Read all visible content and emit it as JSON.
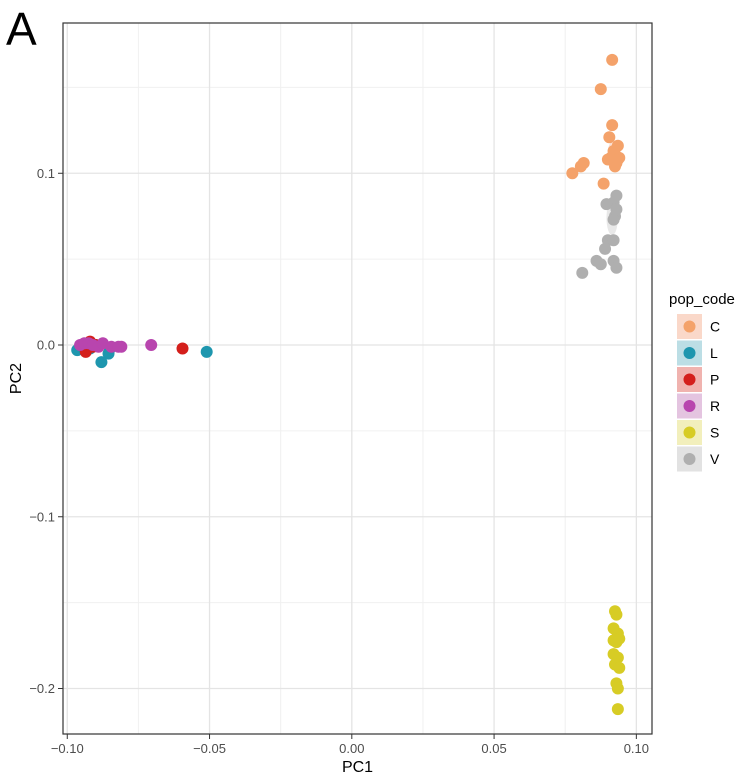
{
  "panel_label": "A",
  "chart_data": {
    "type": "scatter",
    "title": "",
    "xlabel": "PC1",
    "ylabel": "PC2",
    "xlim": [
      -0.1015,
      0.1055
    ],
    "ylim": [
      -0.2265,
      0.1875
    ],
    "x_ticks": [
      -0.1,
      -0.05,
      0.0,
      0.05,
      0.1
    ],
    "x_tick_labels": [
      "−0.10",
      "−0.05",
      "0.00",
      "0.05",
      "0.10"
    ],
    "y_ticks": [
      -0.2,
      -0.1,
      0.0,
      0.1
    ],
    "y_tick_labels": [
      "−0.2",
      "−0.1",
      "0.0",
      "0.1"
    ],
    "grid": true,
    "legend": {
      "title": "pop_code",
      "position": "right",
      "entries": [
        {
          "label": "C",
          "color": "#F4A26A",
          "fill": "#FAD8C9"
        },
        {
          "label": "L",
          "color": "#1E96AE",
          "fill": "#BCDEE5"
        },
        {
          "label": "P",
          "color": "#D41F1B",
          "fill": "#F0B3AF"
        },
        {
          "label": "R",
          "color": "#B845AE",
          "fill": "#E4C4E0"
        },
        {
          "label": "S",
          "color": "#D7CC25",
          "fill": "#F2EFBC"
        },
        {
          "label": "V",
          "color": "#AFAFAF",
          "fill": "#E2E2E2"
        }
      ]
    },
    "series": [
      {
        "name": "C",
        "color": "#F4A26A",
        "points": [
          [
            0.0915,
            0.166
          ],
          [
            0.0875,
            0.149
          ],
          [
            0.0915,
            0.128
          ],
          [
            0.0905,
            0.121
          ],
          [
            0.0935,
            0.116
          ],
          [
            0.0925,
            0.111
          ],
          [
            0.091,
            0.109
          ],
          [
            0.093,
            0.106
          ],
          [
            0.09,
            0.108
          ],
          [
            0.092,
            0.113
          ],
          [
            0.094,
            0.109
          ],
          [
            0.0925,
            0.104
          ],
          [
            0.0815,
            0.106
          ],
          [
            0.0805,
            0.104
          ],
          [
            0.0775,
            0.1
          ],
          [
            0.0885,
            0.094
          ],
          [
            0.0935,
            0.108
          ]
        ],
        "ellipse": {
          "cx": 0.092,
          "cy": 0.11,
          "rx": 0.0022,
          "ry": 0.009
        }
      },
      {
        "name": "L",
        "color": "#1E96AE",
        "points": [
          [
            -0.0965,
            -0.003
          ],
          [
            -0.0955,
            -0.002
          ],
          [
            -0.094,
            -0.001
          ],
          [
            -0.092,
            -0.002
          ],
          [
            -0.088,
            -0.01
          ],
          [
            -0.0855,
            -0.005
          ],
          [
            -0.085,
            -0.002
          ],
          [
            -0.051,
            -0.004
          ],
          [
            -0.09,
            0.0
          ]
        ]
      },
      {
        "name": "P",
        "color": "#D41F1B",
        "points": [
          [
            -0.0935,
            -0.004
          ],
          [
            -0.092,
            0.002
          ],
          [
            -0.091,
            -0.001
          ],
          [
            -0.09,
            0.0
          ],
          [
            -0.0595,
            -0.002
          ]
        ]
      },
      {
        "name": "R",
        "color": "#B845AE",
        "points": [
          [
            -0.0955,
            0.0
          ],
          [
            -0.094,
            0.001
          ],
          [
            -0.0925,
            0.001
          ],
          [
            -0.091,
            0.0
          ],
          [
            -0.089,
            -0.001
          ],
          [
            -0.0875,
            0.001
          ],
          [
            -0.0845,
            -0.001
          ],
          [
            -0.081,
            -0.001
          ],
          [
            -0.082,
            -0.001
          ],
          [
            -0.0705,
            0.0
          ]
        ],
        "ellipse": {
          "cx": -0.0905,
          "cy": 0.0,
          "rx": 0.005,
          "ry": 0.0025
        }
      },
      {
        "name": "S",
        "color": "#D7CC25",
        "points": [
          [
            0.0925,
            -0.155
          ],
          [
            0.093,
            -0.157
          ],
          [
            0.092,
            -0.165
          ],
          [
            0.0935,
            -0.168
          ],
          [
            0.092,
            -0.172
          ],
          [
            0.093,
            -0.173
          ],
          [
            0.094,
            -0.171
          ],
          [
            0.092,
            -0.18
          ],
          [
            0.0935,
            -0.182
          ],
          [
            0.0925,
            -0.186
          ],
          [
            0.094,
            -0.188
          ],
          [
            0.093,
            -0.197
          ],
          [
            0.0935,
            -0.2
          ],
          [
            0.0935,
            -0.212
          ]
        ]
      },
      {
        "name": "V",
        "color": "#AFAFAF",
        "points": [
          [
            0.093,
            0.087
          ],
          [
            0.092,
            0.083
          ],
          [
            0.0895,
            0.082
          ],
          [
            0.093,
            0.079
          ],
          [
            0.0925,
            0.075
          ],
          [
            0.092,
            0.073
          ],
          [
            0.09,
            0.061
          ],
          [
            0.092,
            0.061
          ],
          [
            0.089,
            0.056
          ],
          [
            0.086,
            0.049
          ],
          [
            0.0875,
            0.047
          ],
          [
            0.092,
            0.049
          ],
          [
            0.093,
            0.045
          ],
          [
            0.081,
            0.042
          ]
        ],
        "ellipse": {
          "cx": 0.0915,
          "cy": 0.074,
          "rx": 0.002,
          "ry": 0.01
        }
      }
    ]
  }
}
